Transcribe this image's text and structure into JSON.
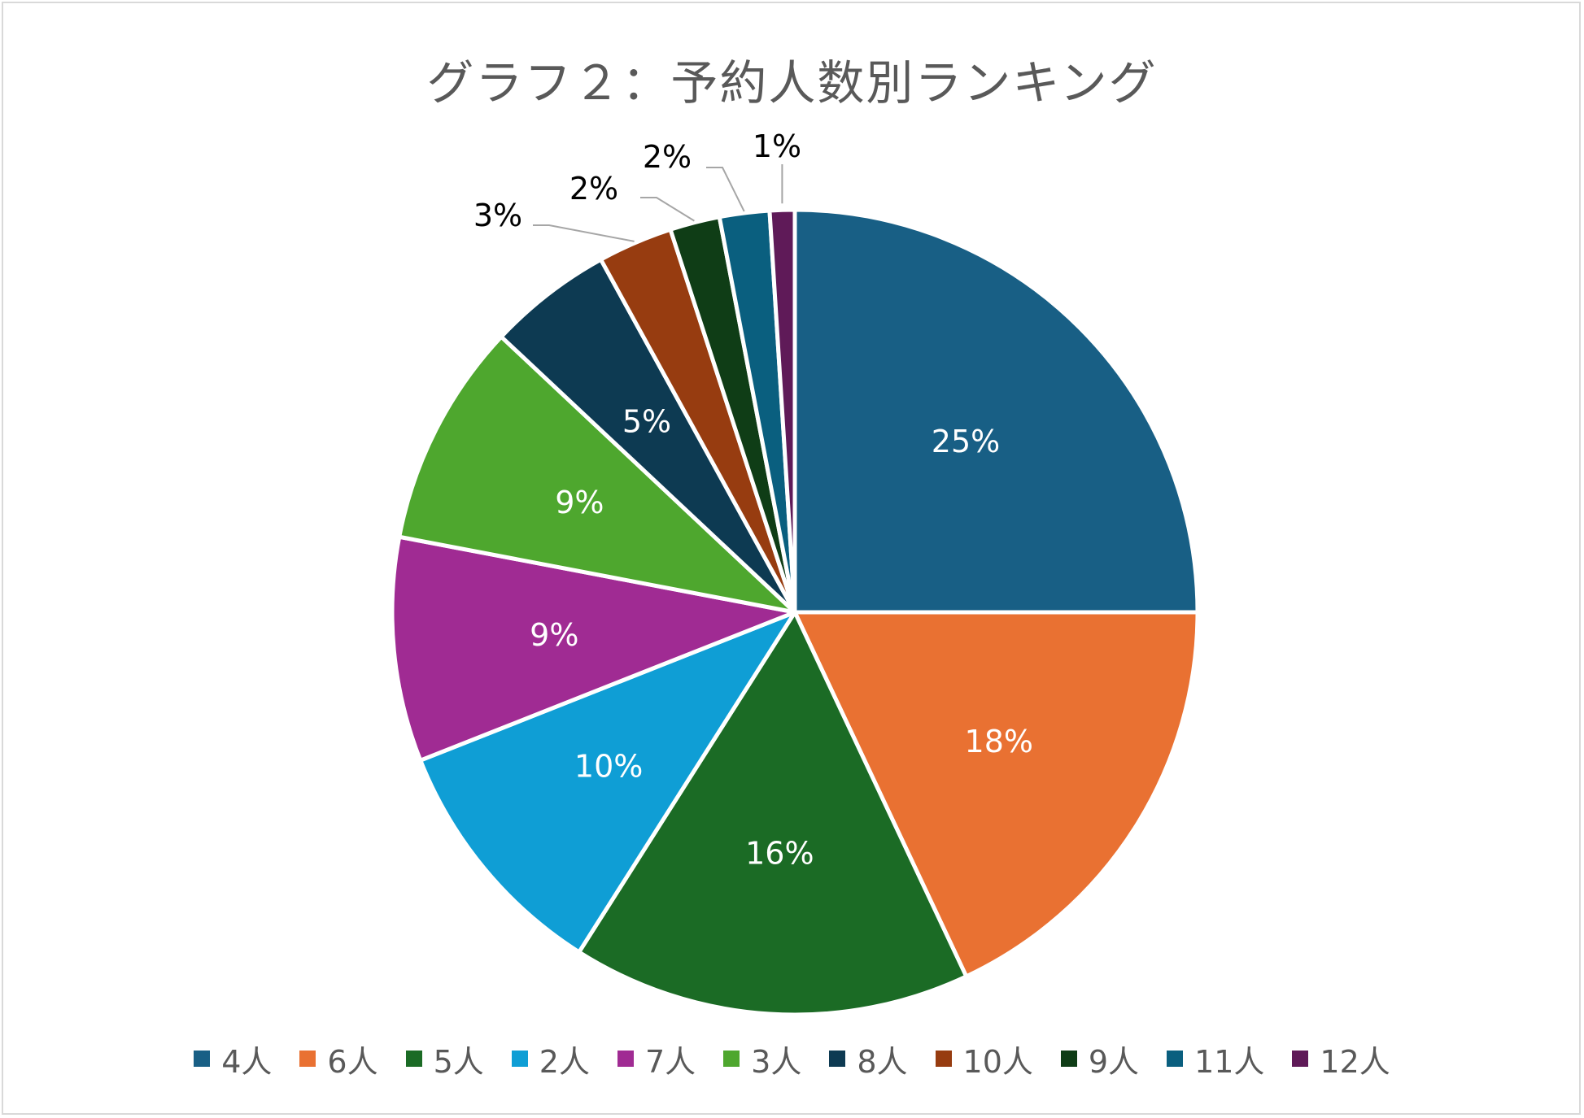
{
  "chart_data": {
    "type": "pie",
    "title": "グラフ２：予約人数別ランキング",
    "legend_position": "bottom",
    "slices": [
      {
        "label": "4人",
        "value": 25,
        "display": "25%",
        "color": "#185f85"
      },
      {
        "label": "6人",
        "value": 18,
        "display": "18%",
        "color": "#e97132"
      },
      {
        "label": "5人",
        "value": 16,
        "display": "16%",
        "color": "#1b6b25"
      },
      {
        "label": "2人",
        "value": 10,
        "display": "10%",
        "color": "#0f9ed5"
      },
      {
        "label": "7人",
        "value": 9,
        "display": "9%",
        "color": "#a02b93"
      },
      {
        "label": "3人",
        "value": 9,
        "display": "9%",
        "color": "#4ea72e"
      },
      {
        "label": "8人",
        "value": 5,
        "display": "5%",
        "color": "#0d3a52"
      },
      {
        "label": "10人",
        "value": 3,
        "display": "3%",
        "color": "#973c10"
      },
      {
        "label": "9人",
        "value": 2,
        "display": "2%",
        "color": "#0f3d16"
      },
      {
        "label": "11人",
        "value": 2,
        "display": "2%",
        "color": "#0a5f7f"
      },
      {
        "label": "12人",
        "value": 1,
        "display": "1%",
        "color": "#5f1a58"
      }
    ]
  }
}
